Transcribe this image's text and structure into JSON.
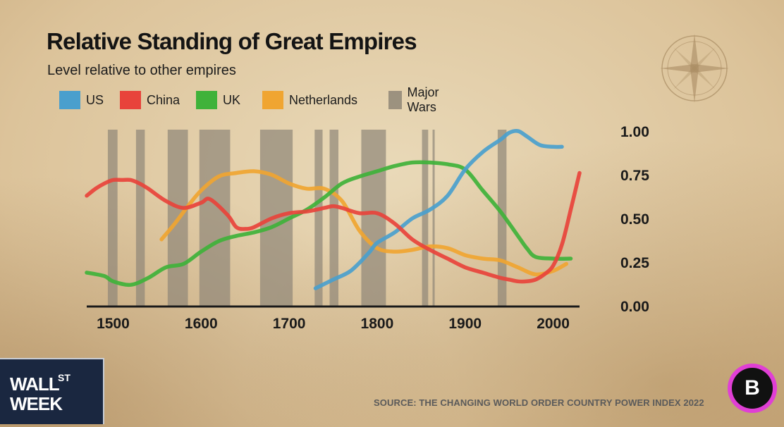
{
  "header": {
    "title": "Relative Standing of Great Empires",
    "subtitle": "Level relative to other empires"
  },
  "legend": [
    {
      "label": "US",
      "color": "#4a9fcd"
    },
    {
      "label": "China",
      "color": "#e8433b"
    },
    {
      "label": "UK",
      "color": "#3fb23a"
    },
    {
      "label": "Netherlands",
      "color": "#f0a531"
    },
    {
      "label": "Major Wars",
      "color": "#8f8677"
    }
  ],
  "branding": {
    "show_word1": "WALL",
    "show_word2": "ST",
    "show_word3": "WEEK",
    "network_logo": "B"
  },
  "source": "SOURCE: THE CHANGING WORLD ORDER COUNTRY POWER INDEX 2022",
  "chart_data": {
    "type": "line",
    "title": "Relative Standing of Great Empires",
    "subtitle": "Level relative to other empires",
    "xlabel": "",
    "ylabel": "",
    "x_ticks": [
      1500,
      1600,
      1700,
      1800,
      1900,
      2000
    ],
    "y_ticks": [
      "0.00",
      "0.25",
      "0.50",
      "0.75",
      "1.00"
    ],
    "xlim": [
      1470,
      2030
    ],
    "ylim": [
      0,
      1
    ],
    "grid": false,
    "legend_position": "top",
    "y_axis_side": "right",
    "series": [
      {
        "name": "US",
        "color": "#4a9fcd",
        "x": [
          1730,
          1750,
          1770,
          1790,
          1800,
          1820,
          1840,
          1860,
          1880,
          1900,
          1920,
          1940,
          1950,
          1960,
          1970,
          1985,
          2000,
          2010
        ],
        "y": [
          0.1,
          0.15,
          0.2,
          0.3,
          0.36,
          0.42,
          0.5,
          0.55,
          0.63,
          0.78,
          0.88,
          0.95,
          0.99,
          1.0,
          0.97,
          0.92,
          0.91,
          0.91
        ]
      },
      {
        "name": "China",
        "color": "#e8433b",
        "x": [
          1470,
          1480,
          1490,
          1500,
          1510,
          1520,
          1530,
          1540,
          1560,
          1580,
          1600,
          1610,
          1630,
          1640,
          1650,
          1660,
          1680,
          1700,
          1720,
          1740,
          1750,
          1760,
          1780,
          1800,
          1820,
          1840,
          1860,
          1880,
          1900,
          1920,
          1940,
          1950,
          1960,
          1970,
          1980,
          1990,
          2000,
          2010,
          2020,
          2030
        ],
        "y": [
          0.63,
          0.67,
          0.7,
          0.72,
          0.72,
          0.72,
          0.7,
          0.67,
          0.6,
          0.56,
          0.59,
          0.61,
          0.52,
          0.45,
          0.44,
          0.45,
          0.5,
          0.53,
          0.54,
          0.56,
          0.57,
          0.56,
          0.53,
          0.53,
          0.47,
          0.38,
          0.32,
          0.27,
          0.22,
          0.19,
          0.16,
          0.15,
          0.14,
          0.14,
          0.15,
          0.18,
          0.23,
          0.35,
          0.55,
          0.76
        ]
      },
      {
        "name": "UK",
        "color": "#3fb23a",
        "x": [
          1470,
          1490,
          1500,
          1520,
          1540,
          1560,
          1580,
          1600,
          1620,
          1640,
          1660,
          1680,
          1700,
          1720,
          1740,
          1760,
          1780,
          1800,
          1820,
          1840,
          1860,
          1880,
          1900,
          1920,
          1940,
          1960,
          1970,
          1980,
          2000,
          2020
        ],
        "y": [
          0.19,
          0.17,
          0.14,
          0.12,
          0.16,
          0.22,
          0.24,
          0.31,
          0.37,
          0.4,
          0.42,
          0.45,
          0.5,
          0.55,
          0.62,
          0.7,
          0.74,
          0.77,
          0.8,
          0.82,
          0.82,
          0.81,
          0.78,
          0.66,
          0.54,
          0.4,
          0.33,
          0.28,
          0.27,
          0.27
        ]
      },
      {
        "name": "Netherlands",
        "color": "#f0a531",
        "x": [
          1555,
          1570,
          1585,
          1600,
          1620,
          1640,
          1660,
          1680,
          1700,
          1720,
          1740,
          1760,
          1780,
          1800,
          1820,
          1840,
          1860,
          1880,
          1900,
          1920,
          1940,
          1960,
          1980,
          2000,
          2015
        ],
        "y": [
          0.38,
          0.47,
          0.57,
          0.66,
          0.74,
          0.76,
          0.77,
          0.75,
          0.7,
          0.67,
          0.67,
          0.6,
          0.43,
          0.33,
          0.31,
          0.32,
          0.34,
          0.33,
          0.29,
          0.27,
          0.26,
          0.22,
          0.18,
          0.2,
          0.24
        ]
      }
    ],
    "major_wars": [
      {
        "start": 1494,
        "end": 1505
      },
      {
        "start": 1526,
        "end": 1536
      },
      {
        "start": 1562,
        "end": 1585
      },
      {
        "start": 1598,
        "end": 1633
      },
      {
        "start": 1667,
        "end": 1704
      },
      {
        "start": 1729,
        "end": 1738
      },
      {
        "start": 1746,
        "end": 1756
      },
      {
        "start": 1782,
        "end": 1810
      },
      {
        "start": 1851,
        "end": 1858
      },
      {
        "start": 1863,
        "end": 1865
      },
      {
        "start": 1937,
        "end": 1947
      }
    ]
  }
}
